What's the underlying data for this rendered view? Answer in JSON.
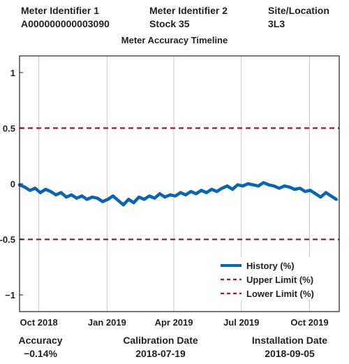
{
  "header": {
    "meter_id_1": {
      "label": "Meter Identifier 1",
      "value": "A000000000003090"
    },
    "meter_id_2": {
      "label": "Meter Identifier 2",
      "value": "Stock 35"
    },
    "site": {
      "label": "Site/Location",
      "value": "3L3"
    }
  },
  "footer": {
    "accuracy": {
      "label": "Accuracy",
      "value": "−0.14%"
    },
    "calibration": {
      "label": "Calibration Date",
      "value": "2018-07-19"
    },
    "installation": {
      "label": "Installation Date",
      "value": "2018-09-05"
    }
  },
  "colors": {
    "history": "#0b64b0",
    "limit": "#9b1b30",
    "grid": "#c8c8c8",
    "axis": "#231f20"
  },
  "chart_data": {
    "type": "line",
    "title": "Meter Accuracy Timeline",
    "xlabel": "",
    "ylabel": "",
    "xlim": [
      "2018-09-05",
      "2019-11-10"
    ],
    "ylim": [
      -1.15,
      1.15
    ],
    "x_ticks": [
      {
        "date": "2018-10-01",
        "label": "Oct 2018"
      },
      {
        "date": "2019-01-01",
        "label": "Jan 2019"
      },
      {
        "date": "2019-04-01",
        "label": "Apr 2019"
      },
      {
        "date": "2019-07-01",
        "label": "Jul 2019"
      },
      {
        "date": "2019-10-01",
        "label": "Oct 2019"
      }
    ],
    "y_ticks": [
      {
        "value": 1,
        "label": "1"
      },
      {
        "value": 0.5,
        "label": "0.5"
      },
      {
        "value": 0,
        "label": "0"
      },
      {
        "value": -0.5,
        "label": "-0.5"
      },
      {
        "value": -1,
        "label": "−1"
      }
    ],
    "grid": "vertical",
    "legend_position": "bottom-right",
    "series": [
      {
        "name": "History (%)",
        "style": "solid",
        "x": [
          "2018-09-05",
          "2018-09-12",
          "2018-09-19",
          "2018-09-26",
          "2018-10-03",
          "2018-10-10",
          "2018-10-17",
          "2018-10-24",
          "2018-10-31",
          "2018-11-07",
          "2018-11-14",
          "2018-11-21",
          "2018-11-28",
          "2018-12-05",
          "2018-12-12",
          "2018-12-19",
          "2018-12-26",
          "2019-01-02",
          "2019-01-09",
          "2019-01-16",
          "2019-01-23",
          "2019-01-30",
          "2019-02-06",
          "2019-02-13",
          "2019-02-20",
          "2019-02-27",
          "2019-03-06",
          "2019-03-13",
          "2019-03-20",
          "2019-03-27",
          "2019-04-03",
          "2019-04-10",
          "2019-04-17",
          "2019-04-24",
          "2019-05-01",
          "2019-05-08",
          "2019-05-15",
          "2019-05-22",
          "2019-05-29",
          "2019-06-05",
          "2019-06-12",
          "2019-06-19",
          "2019-06-26",
          "2019-07-03",
          "2019-07-10",
          "2019-07-17",
          "2019-07-24",
          "2019-07-31",
          "2019-08-07",
          "2019-08-14",
          "2019-08-21",
          "2019-08-28",
          "2019-09-04",
          "2019-09-11",
          "2019-09-18",
          "2019-09-25",
          "2019-10-02",
          "2019-10-09",
          "2019-10-16",
          "2019-10-23",
          "2019-10-30",
          "2019-11-06"
        ],
        "y": [
          -0.01,
          -0.03,
          -0.06,
          -0.04,
          -0.08,
          -0.05,
          -0.07,
          -0.1,
          -0.08,
          -0.12,
          -0.1,
          -0.13,
          -0.11,
          -0.14,
          -0.12,
          -0.13,
          -0.16,
          -0.14,
          -0.11,
          -0.15,
          -0.19,
          -0.14,
          -0.17,
          -0.12,
          -0.14,
          -0.11,
          -0.13,
          -0.09,
          -0.12,
          -0.1,
          -0.11,
          -0.08,
          -0.1,
          -0.07,
          -0.09,
          -0.06,
          -0.08,
          -0.05,
          -0.07,
          -0.04,
          -0.02,
          -0.05,
          -0.01,
          -0.02,
          0.0,
          -0.01,
          -0.02,
          0.01,
          -0.01,
          -0.02,
          -0.04,
          -0.02,
          -0.03,
          -0.05,
          -0.04,
          -0.07,
          -0.06,
          -0.09,
          -0.12,
          -0.08,
          -0.11,
          -0.14
        ]
      },
      {
        "name": "Upper Limit (%)",
        "style": "dashed",
        "x": [
          "2018-09-05",
          "2019-11-10"
        ],
        "y": [
          0.5,
          0.5
        ]
      },
      {
        "name": "Lower Limit (%)",
        "style": "dashed",
        "x": [
          "2018-09-05",
          "2019-11-10"
        ],
        "y": [
          -0.5,
          -0.5
        ]
      }
    ]
  }
}
